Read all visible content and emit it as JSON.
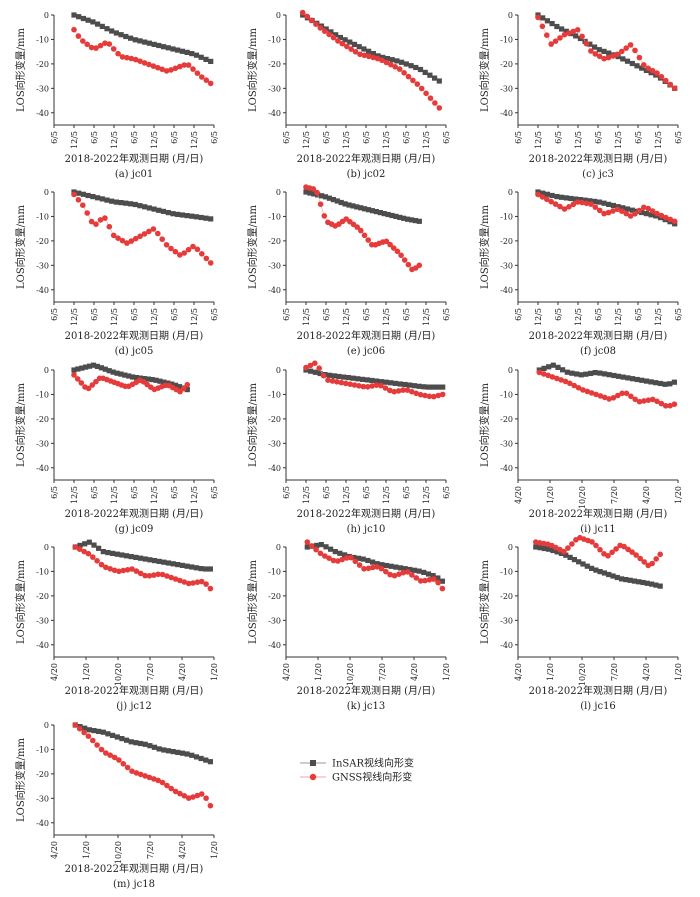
{
  "legend": [
    {
      "label": "InSAR视线向形变",
      "color": "#4d4d4d",
      "marker": "square"
    },
    {
      "label": "GNSS视线向形变",
      "color": "#e63b3b",
      "marker": "circle"
    }
  ],
  "colors": {
    "insar": "#4d4d4d",
    "gnss": "#e63b3b",
    "gnss_line": "#f4a3a3"
  },
  "chart_data": [
    {
      "type": "scatter",
      "caption": "(a) jc01",
      "xlabel": "2018-2022年观测日期 (月/日)",
      "ylabel": "LOS向形变量/mm",
      "ylim": [
        -45,
        0
      ],
      "yticks": [
        0,
        -10,
        -20,
        -30,
        -40
      ],
      "xlim": [
        0,
        48
      ],
      "xtick_pos": [
        0,
        6,
        12,
        18,
        24,
        30,
        36,
        42,
        48
      ],
      "xticks": [
        "6/5",
        "12/5",
        "6/5",
        "12/5",
        "6/5",
        "12/5",
        "6/5",
        "12/5",
        "6/5"
      ],
      "series": [
        {
          "key": "insar",
          "x": [
            6,
            12,
            18,
            24,
            30,
            36,
            42,
            47
          ],
          "y": [
            0,
            -3,
            -7,
            -10,
            -12,
            -14,
            -16,
            -19
          ]
        },
        {
          "key": "gnss",
          "x": [
            6,
            8,
            12,
            16,
            20,
            24,
            30,
            34,
            40,
            44,
            47
          ],
          "y": [
            -6,
            -10,
            -14,
            -11,
            -17,
            -18,
            -21,
            -23,
            -20,
            -25,
            -28
          ]
        }
      ]
    },
    {
      "type": "scatter",
      "caption": "(b) jc02",
      "xlabel": "2018-2022年观测日期 (月/日)",
      "ylabel": "LOS向形变量/mm",
      "ylim": [
        -45,
        0
      ],
      "yticks": [
        0,
        -10,
        -20,
        -30,
        -40
      ],
      "xlim": [
        0,
        48
      ],
      "xtick_pos": [
        0,
        6,
        12,
        18,
        24,
        30,
        36,
        42,
        48
      ],
      "xticks": [
        "6/5",
        "12/5",
        "6/5",
        "12/5",
        "6/5",
        "12/5",
        "6/5",
        "12/5",
        "6/5"
      ],
      "series": [
        {
          "key": "insar",
          "x": [
            5,
            10,
            16,
            22,
            28,
            34,
            40,
            46
          ],
          "y": [
            0,
            -4,
            -9,
            -13,
            -17,
            -19,
            -22,
            -27
          ]
        },
        {
          "key": "gnss",
          "x": [
            5,
            10,
            16,
            22,
            28,
            34,
            40,
            46
          ],
          "y": [
            1,
            -5,
            -11,
            -16,
            -18,
            -22,
            -29,
            -38
          ]
        }
      ]
    },
    {
      "type": "scatter",
      "caption": "(c) jc3",
      "xlabel": "2018-2022年观测日期 (月/日)",
      "ylabel": "LOS向形变量/mm",
      "ylim": [
        -45,
        0
      ],
      "yticks": [
        0,
        -10,
        -20,
        -30,
        -40
      ],
      "xlim": [
        0,
        48
      ],
      "xtick_pos": [
        0,
        6,
        12,
        18,
        24,
        30,
        36,
        42,
        48
      ],
      "xticks": [
        "6/5",
        "12/5",
        "6/5",
        "12/5",
        "6/5",
        "12/5",
        "6/5",
        "12/5",
        "6/5"
      ],
      "series": [
        {
          "key": "insar",
          "x": [
            6,
            12,
            18,
            24,
            30,
            36,
            42,
            47
          ],
          "y": [
            0,
            -5,
            -9,
            -14,
            -17,
            -21,
            -25,
            -30
          ]
        },
        {
          "key": "gnss",
          "x": [
            6,
            10,
            14,
            18,
            22,
            26,
            30,
            34,
            38,
            42,
            47
          ],
          "y": [
            -1,
            -12,
            -8,
            -6,
            -15,
            -18,
            -16,
            -12,
            -21,
            -24,
            -30
          ]
        }
      ]
    },
    {
      "type": "scatter",
      "caption": "(d) jc05",
      "xlabel": "2018-2022年观测日期 (月/日)",
      "ylabel": "LOS向形变量/mm",
      "ylim": [
        -45,
        0
      ],
      "yticks": [
        0,
        -10,
        -20,
        -30,
        -40
      ],
      "xlim": [
        0,
        48
      ],
      "xtick_pos": [
        0,
        6,
        12,
        18,
        24,
        30,
        36,
        42,
        48
      ],
      "xticks": [
        "6/5",
        "12/5",
        "6/5",
        "12/5",
        "6/5",
        "12/5",
        "6/5",
        "12/5",
        "6/5"
      ],
      "series": [
        {
          "key": "insar",
          "x": [
            6,
            12,
            18,
            24,
            30,
            36,
            42,
            47
          ],
          "y": [
            0,
            -2,
            -4,
            -5,
            -7,
            -9,
            -10,
            -11
          ]
        },
        {
          "key": "gnss",
          "x": [
            6,
            9,
            12,
            15,
            18,
            22,
            26,
            30,
            34,
            38,
            42,
            47
          ],
          "y": [
            -1,
            -6,
            -14,
            -10,
            -18,
            -21,
            -18,
            -15,
            -22,
            -26,
            -22,
            -29
          ]
        }
      ]
    },
    {
      "type": "scatter",
      "caption": "(e) jc06",
      "xlabel": "2018-2022年观测日期 (月/日)",
      "ylabel": "LOS向形变量/mm",
      "ylim": [
        -45,
        0
      ],
      "yticks": [
        0,
        -10,
        -20,
        -30,
        -40
      ],
      "xlim": [
        0,
        48
      ],
      "xtick_pos": [
        0,
        6,
        12,
        18,
        24,
        30,
        36,
        42,
        48
      ],
      "xticks": [
        "6/5",
        "12/5",
        "6/5",
        "12/5",
        "6/5",
        "12/5",
        "6/5",
        "12/5",
        "6/5"
      ],
      "series": [
        {
          "key": "insar",
          "x": [
            6,
            12,
            18,
            24,
            30,
            36,
            40
          ],
          "y": [
            0,
            -2,
            -5,
            -7,
            -9,
            -11,
            -12
          ]
        },
        {
          "key": "gnss",
          "x": [
            6,
            9,
            12,
            15,
            18,
            22,
            26,
            30,
            34,
            38,
            40
          ],
          "y": [
            2,
            1,
            -12,
            -14,
            -11,
            -15,
            -22,
            -20,
            -25,
            -32,
            -30
          ]
        }
      ]
    },
    {
      "type": "scatter",
      "caption": "(f) jc08",
      "xlabel": "2018-2022年观测日期 (月/日)",
      "ylabel": "LOS向形变量/mm",
      "ylim": [
        -45,
        0
      ],
      "yticks": [
        0,
        -10,
        -20,
        -30,
        -40
      ],
      "xlim": [
        0,
        48
      ],
      "xtick_pos": [
        0,
        6,
        12,
        18,
        24,
        30,
        36,
        42,
        48
      ],
      "xticks": [
        "6/5",
        "12/5",
        "6/5",
        "12/5",
        "6/5",
        "12/5",
        "6/5",
        "12/5",
        "6/5"
      ],
      "series": [
        {
          "key": "insar",
          "x": [
            6,
            12,
            18,
            24,
            30,
            36,
            42,
            47
          ],
          "y": [
            0,
            -2,
            -3,
            -4,
            -6,
            -8,
            -10,
            -13
          ]
        },
        {
          "key": "gnss",
          "x": [
            6,
            10,
            14,
            18,
            22,
            26,
            30,
            34,
            38,
            42,
            47
          ],
          "y": [
            -1,
            -4,
            -7,
            -4,
            -5,
            -9,
            -7,
            -10,
            -6,
            -9,
            -12
          ]
        }
      ]
    },
    {
      "type": "scatter",
      "caption": "(g) jc09",
      "xlabel": "2018-2022年观测日期 (月/日)",
      "ylabel": "LOS向形变量/mm",
      "ylim": [
        -45,
        0
      ],
      "yticks": [
        0,
        -10,
        -20,
        -30,
        -40
      ],
      "xlim": [
        0,
        48
      ],
      "xtick_pos": [
        0,
        6,
        12,
        18,
        24,
        30,
        36,
        42,
        48
      ],
      "xticks": [
        "6/5",
        "12/5",
        "6/5",
        "12/5",
        "6/5",
        "12/5",
        "6/5",
        "12/5",
        "6/5"
      ],
      "series": [
        {
          "key": "insar",
          "x": [
            6,
            12,
            18,
            24,
            30,
            36,
            40
          ],
          "y": [
            0,
            2,
            -1,
            -3,
            -4,
            -6,
            -8
          ]
        },
        {
          "key": "gnss",
          "x": [
            6,
            10,
            14,
            18,
            22,
            26,
            30,
            34,
            38,
            40
          ],
          "y": [
            -2,
            -8,
            -3,
            -5,
            -7,
            -4,
            -8,
            -6,
            -9,
            -6
          ]
        }
      ]
    },
    {
      "type": "scatter",
      "caption": "(h) jc10",
      "xlabel": "2018-2022年观测日期 (月/日)",
      "ylabel": "LOS向形变量/mm",
      "ylim": [
        -45,
        0
      ],
      "yticks": [
        0,
        -10,
        -20,
        -30,
        -40
      ],
      "xlim": [
        0,
        48
      ],
      "xtick_pos": [
        0,
        6,
        12,
        18,
        24,
        30,
        36,
        42,
        48
      ],
      "xticks": [
        "6/5",
        "12/5",
        "6/5",
        "12/5",
        "6/5",
        "12/5",
        "6/5",
        "12/5",
        "6/5"
      ],
      "series": [
        {
          "key": "insar",
          "x": [
            6,
            12,
            18,
            24,
            30,
            36,
            42,
            47
          ],
          "y": [
            0,
            -2,
            -3,
            -4,
            -5,
            -6,
            -7,
            -7
          ]
        },
        {
          "key": "gnss",
          "x": [
            6,
            9,
            12,
            16,
            20,
            24,
            28,
            32,
            36,
            40,
            44,
            47
          ],
          "y": [
            1,
            3,
            -4,
            -5,
            -6,
            -7,
            -6,
            -9,
            -8,
            -10,
            -11,
            -10
          ]
        }
      ]
    },
    {
      "type": "scatter",
      "caption": "(i) jc11",
      "xlabel": "2018-2022年观测日期 (月/日)",
      "ylabel": "LOS向形变量/mm",
      "ylim": [
        -45,
        0
      ],
      "yticks": [
        0,
        -10,
        -20,
        -30,
        -40
      ],
      "xlim": [
        0,
        45
      ],
      "xtick_pos": [
        0,
        9,
        18,
        27,
        36,
        45
      ],
      "xticks": [
        "4/20",
        "1/20",
        "10/20",
        "7/20",
        "4/20",
        "1/20"
      ],
      "series": [
        {
          "key": "insar",
          "x": [
            6,
            10,
            14,
            18,
            22,
            26,
            30,
            34,
            38,
            42,
            44
          ],
          "y": [
            0,
            2,
            -1,
            -2,
            -1,
            -2,
            -3,
            -4,
            -5,
            -6,
            -5
          ]
        },
        {
          "key": "gnss",
          "x": [
            6,
            10,
            14,
            18,
            22,
            26,
            30,
            34,
            38,
            42,
            44
          ],
          "y": [
            -1,
            -3,
            -5,
            -8,
            -10,
            -12,
            -9,
            -13,
            -12,
            -15,
            -14
          ]
        }
      ]
    },
    {
      "type": "scatter",
      "caption": "(j) jc12",
      "xlabel": "2018-2022年观测日期 (月/日)",
      "ylabel": "LOS向形变量/mm",
      "ylim": [
        -45,
        0
      ],
      "yticks": [
        0,
        -10,
        -20,
        -30,
        -40
      ],
      "xlim": [
        0,
        45
      ],
      "xtick_pos": [
        0,
        9,
        18,
        27,
        36,
        45
      ],
      "xticks": [
        "4/20",
        "1/20",
        "10/20",
        "7/20",
        "4/20",
        "1/20"
      ],
      "series": [
        {
          "key": "insar",
          "x": [
            6,
            10,
            14,
            18,
            22,
            26,
            30,
            34,
            38,
            42,
            44
          ],
          "y": [
            0,
            2,
            -2,
            -3,
            -4,
            -5,
            -6,
            -7,
            -8,
            -9,
            -9
          ]
        },
        {
          "key": "gnss",
          "x": [
            6,
            10,
            14,
            18,
            22,
            26,
            30,
            34,
            38,
            42,
            44
          ],
          "y": [
            0,
            -3,
            -8,
            -10,
            -9,
            -12,
            -11,
            -13,
            -15,
            -14,
            -17
          ]
        }
      ]
    },
    {
      "type": "scatter",
      "caption": "(k) jc13",
      "xlabel": "2018-2022年观测日期 (月/日)",
      "ylabel": "LOS向形变量/mm",
      "ylim": [
        -45,
        0
      ],
      "yticks": [
        0,
        -10,
        -20,
        -30,
        -40
      ],
      "xlim": [
        0,
        45
      ],
      "xtick_pos": [
        0,
        9,
        18,
        27,
        36,
        45
      ],
      "xticks": [
        "4/20",
        "1/20",
        "10/20",
        "7/20",
        "4/20",
        "1/20"
      ],
      "series": [
        {
          "key": "insar",
          "x": [
            6,
            10,
            14,
            18,
            22,
            26,
            30,
            34,
            38,
            42,
            44
          ],
          "y": [
            0,
            1,
            -2,
            -4,
            -5,
            -7,
            -8,
            -9,
            -10,
            -12,
            -14
          ]
        },
        {
          "key": "gnss",
          "x": [
            6,
            10,
            14,
            18,
            22,
            26,
            30,
            34,
            38,
            42,
            44
          ],
          "y": [
            2,
            -3,
            -6,
            -4,
            -9,
            -8,
            -12,
            -10,
            -14,
            -13,
            -17
          ]
        }
      ]
    },
    {
      "type": "scatter",
      "caption": "(l) jc16",
      "xlabel": "2018-2022年观测日期 (月/日)",
      "ylabel": "LOS向形变量/mm",
      "ylim": [
        -45,
        0
      ],
      "yticks": [
        0,
        -10,
        -20,
        -30,
        -40
      ],
      "xlim": [
        0,
        45
      ],
      "xtick_pos": [
        0,
        9,
        18,
        27,
        36,
        45
      ],
      "xticks": [
        "4/20",
        "1/20",
        "10/20",
        "7/20",
        "4/20",
        "1/20"
      ],
      "series": [
        {
          "key": "insar",
          "x": [
            5,
            9,
            13,
            17,
            21,
            25,
            29,
            33,
            37,
            40
          ],
          "y": [
            0,
            -1,
            -3,
            -6,
            -9,
            -11,
            -13,
            -14,
            -15,
            -16
          ]
        },
        {
          "key": "gnss",
          "x": [
            5,
            9,
            13,
            17,
            21,
            25,
            29,
            33,
            37,
            40
          ],
          "y": [
            2,
            1,
            -2,
            4,
            2,
            -4,
            1,
            -3,
            -8,
            -3
          ]
        }
      ]
    },
    {
      "type": "scatter",
      "caption": "(m) jc18",
      "xlabel": "2018-2022年观测日期 (月/日)",
      "ylabel": "LOS向形变量/mm",
      "ylim": [
        -45,
        0
      ],
      "yticks": [
        0,
        -10,
        -20,
        -30,
        -40
      ],
      "xlim": [
        0,
        45
      ],
      "xtick_pos": [
        0,
        9,
        18,
        27,
        36,
        45
      ],
      "xticks": [
        "4/20",
        "1/20",
        "10/20",
        "7/20",
        "4/20",
        "1/20"
      ],
      "series": [
        {
          "key": "insar",
          "x": [
            6,
            10,
            14,
            18,
            22,
            26,
            30,
            34,
            38,
            42,
            44
          ],
          "y": [
            0,
            -2,
            -3,
            -5,
            -7,
            -8,
            -10,
            -11,
            -12,
            -14,
            -15
          ]
        },
        {
          "key": "gnss",
          "x": [
            6,
            10,
            14,
            18,
            22,
            26,
            30,
            34,
            38,
            42,
            44
          ],
          "y": [
            0,
            -5,
            -11,
            -14,
            -19,
            -21,
            -23,
            -27,
            -30,
            -28,
            -33
          ]
        }
      ]
    }
  ]
}
